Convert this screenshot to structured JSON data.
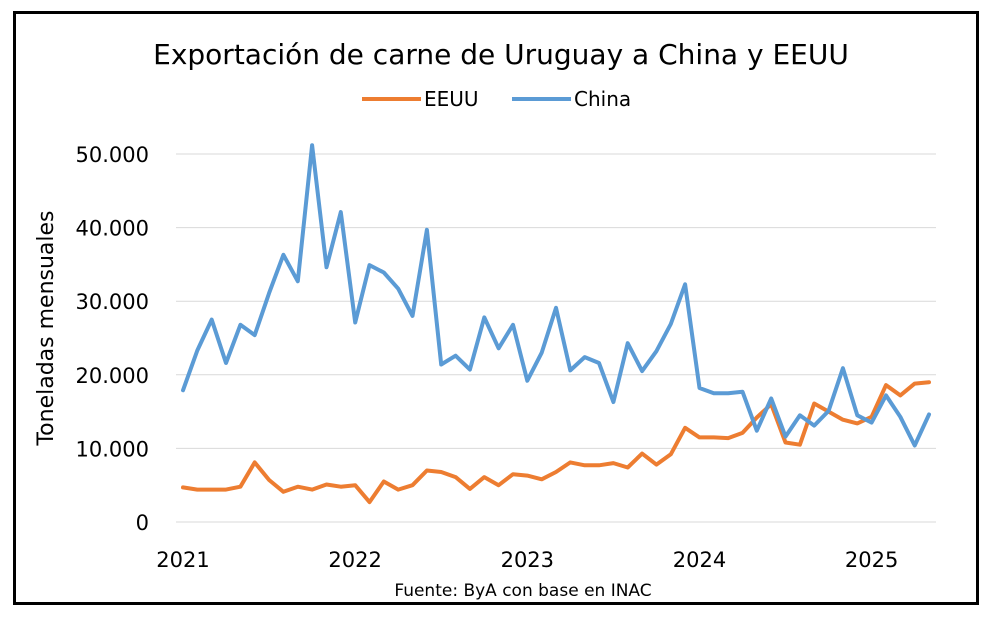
{
  "chart_data": {
    "type": "line",
    "title": "Exportación de carne de Uruguay a China y EEUU",
    "ylabel": "Toneladas mensuales",
    "xlabel": "",
    "source": "Fuente: ByA con base en INAC",
    "legend_position": "top",
    "grid": "horizontal",
    "ylim": [
      0,
      50000
    ],
    "yticks": [
      {
        "value": 0,
        "label": "0"
      },
      {
        "value": 10000,
        "label": "10.000"
      },
      {
        "value": 20000,
        "label": "20.000"
      },
      {
        "value": 30000,
        "label": "30.000"
      },
      {
        "value": 40000,
        "label": "40.000"
      },
      {
        "value": 50000,
        "label": "50.000"
      }
    ],
    "xlim": [
      "2021-01",
      "2025-05"
    ],
    "xticks": [
      {
        "value": "2021-01",
        "label": "2021"
      },
      {
        "value": "2022-01",
        "label": "2022"
      },
      {
        "value": "2023-01",
        "label": "2023"
      },
      {
        "value": "2024-01",
        "label": "2024"
      },
      {
        "value": "2025-01",
        "label": "2025"
      }
    ],
    "x": [
      "2021-01",
      "2021-02",
      "2021-03",
      "2021-04",
      "2021-05",
      "2021-06",
      "2021-07",
      "2021-08",
      "2021-09",
      "2021-10",
      "2021-11",
      "2021-12",
      "2022-01",
      "2022-02",
      "2022-03",
      "2022-04",
      "2022-05",
      "2022-06",
      "2022-07",
      "2022-08",
      "2022-09",
      "2022-10",
      "2022-11",
      "2022-12",
      "2023-01",
      "2023-02",
      "2023-03",
      "2023-04",
      "2023-05",
      "2023-06",
      "2023-07",
      "2023-08",
      "2023-09",
      "2023-10",
      "2023-11",
      "2023-12",
      "2024-01",
      "2024-02",
      "2024-03",
      "2024-04",
      "2024-05",
      "2024-06",
      "2024-07",
      "2024-08",
      "2024-09",
      "2024-10",
      "2024-11",
      "2024-12",
      "2025-01",
      "2025-02",
      "2025-03",
      "2025-04",
      "2025-05"
    ],
    "series": [
      {
        "name": "EEUU",
        "color": "#ed7d31",
        "values": [
          4700,
          4400,
          4400,
          4400,
          4800,
          8100,
          5700,
          4100,
          4800,
          4400,
          5100,
          4800,
          5000,
          2700,
          5500,
          4400,
          5000,
          7000,
          6800,
          6100,
          4500,
          6100,
          5000,
          6500,
          6300,
          5800,
          6800,
          8100,
          7700,
          7700,
          8000,
          7400,
          9300,
          7800,
          9200,
          12800,
          11500,
          11500,
          11400,
          12100,
          14200,
          16000,
          10800,
          10500,
          16100,
          15000,
          13900,
          13400,
          14300,
          18600,
          17200,
          18800,
          19000
        ]
      },
      {
        "name": "China",
        "color": "#5b9bd5",
        "values": [
          17900,
          23300,
          27500,
          21600,
          26800,
          25400,
          31100,
          36300,
          32700,
          51200,
          34600,
          42100,
          27100,
          34900,
          33900,
          31700,
          28000,
          39700,
          21400,
          22600,
          20700,
          27800,
          23600,
          26800,
          19200,
          23000,
          29100,
          20600,
          22400,
          21600,
          16300,
          24300,
          20500,
          23200,
          26900,
          32300,
          18200,
          17500,
          17500,
          17700,
          12400,
          16800,
          11600,
          14500,
          13100,
          15100,
          20900,
          14500,
          13500,
          17200,
          14300,
          10400,
          14600
        ]
      }
    ]
  }
}
